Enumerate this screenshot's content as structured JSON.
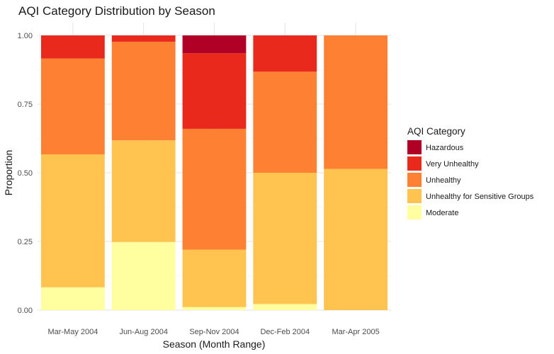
{
  "chart_data": {
    "type": "bar",
    "stacked": true,
    "title": "AQI Category Distribution by Season",
    "xlabel": "Season (Month Range)",
    "ylabel": "Proportion",
    "ylim": [
      0,
      1
    ],
    "yticks": [
      "0.00",
      "0.25",
      "0.50",
      "0.75",
      "1.00"
    ],
    "ytick_values": [
      0,
      0.25,
      0.5,
      0.75,
      1
    ],
    "grid": true,
    "legend_placement": "right",
    "legend_title": "AQI Category",
    "categories": [
      "Mar-May 2004",
      "Jun-Aug 2004",
      "Sep-Nov 2004",
      "Dec-Feb 2004",
      "Mar-Apr 2005"
    ],
    "series": [
      {
        "name": "Moderate",
        "color": "#FFFFA0",
        "values": [
          0.083,
          0.248,
          0.011,
          0.022,
          0.0
        ]
      },
      {
        "name": "Unhealthy for Sensitive Groups",
        "color": "#FEC44F",
        "values": [
          0.484,
          0.37,
          0.209,
          0.478,
          0.514
        ]
      },
      {
        "name": "Unhealthy",
        "color": "#FD8033",
        "values": [
          0.349,
          0.359,
          0.44,
          0.368,
          0.486
        ]
      },
      {
        "name": "Very Unhealthy",
        "color": "#E8291C",
        "values": [
          0.084,
          0.023,
          0.275,
          0.132,
          0.0
        ]
      },
      {
        "name": "Hazardous",
        "color": "#B10026",
        "values": [
          0.0,
          0.0,
          0.065,
          0.0,
          0.0
        ]
      }
    ]
  }
}
